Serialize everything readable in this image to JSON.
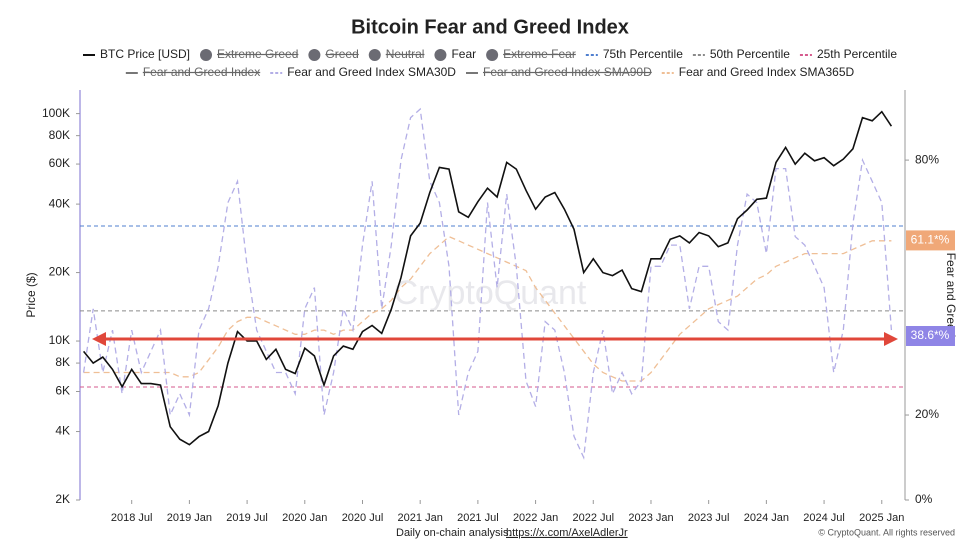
{
  "chart_data": {
    "type": "line",
    "title": "Bitcoin Fear and Greed Index",
    "y_label": "Price ($)",
    "y2_label": "Fear and Greed",
    "watermark": "CryptoQuant",
    "footer": "Daily on-chain analysis:",
    "footer_link": "https://x.com/AxelAdlerJr",
    "copyright": "© CryptoQuant. All rights reserved",
    "log_y": true,
    "xlim": [
      "2018-01",
      "2025-03"
    ],
    "xticks": [
      {
        "value": "2018-07",
        "label": "2018 Jul"
      },
      {
        "value": "2019-01",
        "label": "2019 Jan"
      },
      {
        "value": "2019-07",
        "label": "2019 Jul"
      },
      {
        "value": "2020-01",
        "label": "2020 Jan"
      },
      {
        "value": "2020-07",
        "label": "2020 Jul"
      },
      {
        "value": "2021-01",
        "label": "2021 Jan"
      },
      {
        "value": "2021-07",
        "label": "2021 Jul"
      },
      {
        "value": "2022-01",
        "label": "2022 Jan"
      },
      {
        "value": "2022-07",
        "label": "2022 Jul"
      },
      {
        "value": "2023-01",
        "label": "2023 Jan"
      },
      {
        "value": "2023-07",
        "label": "2023 Jul"
      },
      {
        "value": "2024-01",
        "label": "2024 Jan"
      },
      {
        "value": "2024-07",
        "label": "2024 Jul"
      },
      {
        "value": "2025-01",
        "label": "2025 Jan"
      }
    ],
    "ylim": [
      2000,
      127000
    ],
    "yticks": [
      {
        "value": 2000,
        "label": "2K"
      },
      {
        "value": 4000,
        "label": "4K"
      },
      {
        "value": 6000,
        "label": "6K"
      },
      {
        "value": 8000,
        "label": "8K"
      },
      {
        "value": 10000,
        "label": "10K"
      },
      {
        "value": 20000,
        "label": "20K"
      },
      {
        "value": 40000,
        "label": "40K"
      },
      {
        "value": 60000,
        "label": "60K"
      },
      {
        "value": 80000,
        "label": "80K"
      },
      {
        "value": 100000,
        "label": "100K"
      }
    ],
    "y2lim": [
      0,
      96.5
    ],
    "y2ticks": [
      {
        "value": 0,
        "label": "0%"
      },
      {
        "value": 20,
        "label": "20%"
      },
      {
        "value": 80,
        "label": "80%"
      }
    ],
    "x": [
      "2018-02",
      "2018-03",
      "2018-04",
      "2018-05",
      "2018-06",
      "2018-07",
      "2018-08",
      "2018-09",
      "2018-10",
      "2018-11",
      "2018-12",
      "2019-01",
      "2019-02",
      "2019-03",
      "2019-04",
      "2019-05",
      "2019-06",
      "2019-07",
      "2019-08",
      "2019-09",
      "2019-10",
      "2019-11",
      "2019-12",
      "2020-01",
      "2020-02",
      "2020-03",
      "2020-04",
      "2020-05",
      "2020-06",
      "2020-07",
      "2020-08",
      "2020-09",
      "2020-10",
      "2020-11",
      "2020-12",
      "2021-01",
      "2021-02",
      "2021-03",
      "2021-04",
      "2021-05",
      "2021-06",
      "2021-07",
      "2021-08",
      "2021-09",
      "2021-10",
      "2021-11",
      "2021-12",
      "2022-01",
      "2022-02",
      "2022-03",
      "2022-04",
      "2022-05",
      "2022-06",
      "2022-07",
      "2022-08",
      "2022-09",
      "2022-10",
      "2022-11",
      "2022-12",
      "2023-01",
      "2023-02",
      "2023-03",
      "2023-04",
      "2023-05",
      "2023-06",
      "2023-07",
      "2023-08",
      "2023-09",
      "2023-10",
      "2023-11",
      "2023-12",
      "2024-01",
      "2024-02",
      "2024-03",
      "2024-04",
      "2024-05",
      "2024-06",
      "2024-07",
      "2024-08",
      "2024-09",
      "2024-10",
      "2024-11",
      "2024-12",
      "2025-01",
      "2025-02"
    ],
    "series": [
      {
        "name": "BTC Price [USD]",
        "color": "#111111",
        "dash": false,
        "values": [
          9000,
          8000,
          8500,
          7500,
          6300,
          7500,
          6500,
          6500,
          6400,
          4200,
          3700,
          3500,
          3800,
          4000,
          5200,
          8000,
          11000,
          10000,
          10000,
          8300,
          9200,
          7500,
          7200,
          9300,
          8600,
          6400,
          8600,
          9500,
          9200,
          11000,
          11700,
          10800,
          13800,
          19000,
          29000,
          33000,
          45000,
          58000,
          57000,
          37000,
          35000,
          41000,
          47000,
          43000,
          61000,
          57000,
          46000,
          38000,
          43000,
          45000,
          38000,
          31000,
          20000,
          23000,
          20000,
          19400,
          20500,
          17000,
          16500,
          23000,
          23000,
          28000,
          29000,
          27000,
          30000,
          29000,
          26000,
          27000,
          34500,
          37700,
          42000,
          42500,
          61000,
          71000,
          60000,
          67000,
          62000,
          64000,
          59000,
          63000,
          70000,
          96000,
          93000,
          102000,
          88000
        ]
      },
      {
        "name": "Fear and Greed Index SMA30D",
        "color": "#b3aee6",
        "dash": true,
        "axis": "y2",
        "values": [
          30,
          45,
          30,
          40,
          25,
          40,
          30,
          35,
          40,
          20,
          25,
          20,
          40,
          45,
          55,
          70,
          75,
          55,
          40,
          35,
          30,
          30,
          25,
          45,
          50,
          20,
          30,
          45,
          40,
          60,
          75,
          45,
          60,
          80,
          90,
          92,
          75,
          70,
          55,
          20,
          30,
          35,
          70,
          50,
          72,
          55,
          28,
          22,
          42,
          40,
          30,
          15,
          10,
          30,
          40,
          25,
          30,
          25,
          28,
          55,
          55,
          60,
          60,
          45,
          55,
          55,
          42,
          40,
          60,
          72,
          70,
          58,
          78,
          78,
          62,
          60,
          55,
          50,
          30,
          40,
          65,
          80,
          75,
          70,
          40
        ]
      },
      {
        "name": "Fear and Greed Index SMA365D",
        "color": "#efbf96",
        "dash": true,
        "axis": "y2",
        "values": [
          30,
          30,
          30,
          30,
          30,
          30,
          30,
          30,
          30,
          30,
          29,
          29,
          30,
          33,
          36,
          40,
          42,
          43,
          43,
          42,
          41,
          40,
          39,
          39,
          40,
          40,
          39,
          40,
          40,
          42,
          44,
          45,
          47,
          50,
          52,
          55,
          58,
          60,
          62,
          61,
          60,
          59,
          58,
          57,
          56,
          55,
          54,
          50,
          47,
          44,
          41,
          38,
          35,
          32,
          30,
          29,
          28,
          28,
          28,
          30,
          33,
          36,
          39,
          41,
          43,
          45,
          46,
          47,
          48,
          50,
          52,
          53,
          55,
          56,
          57,
          58,
          58,
          58,
          58,
          58,
          59,
          60,
          61,
          61,
          61
        ]
      }
    ],
    "percentiles": [
      {
        "name": "75th Percentile",
        "color": "#4f7fcf",
        "value": 64.5
      },
      {
        "name": "50th Percentile",
        "color": "#8a8a8a",
        "value": 44.5
      },
      {
        "name": "25th Percentile",
        "color": "#d65a8e",
        "value": 26.6
      }
    ],
    "legend": [
      {
        "name": "BTC Price [USD]",
        "marker": "line",
        "color": "#111111",
        "hidden": false
      },
      {
        "name": "Extreme Greed",
        "marker": "dot",
        "color": "#6b6b73",
        "hidden": true
      },
      {
        "name": "Greed",
        "marker": "dot",
        "color": "#6b6b73",
        "hidden": true
      },
      {
        "name": "Neutral",
        "marker": "dot",
        "color": "#6b6b73",
        "hidden": true
      },
      {
        "name": "Fear",
        "marker": "dot",
        "color": "#6b6b73",
        "hidden": false
      },
      {
        "name": "Extreme Fear",
        "marker": "dot",
        "color": "#6b6b73",
        "hidden": true
      },
      {
        "name": "75th Percentile",
        "marker": "dash",
        "color": "#4f7fcf",
        "hidden": false
      },
      {
        "name": "50th Percentile",
        "marker": "dash",
        "color": "#8a8a8a",
        "hidden": false
      },
      {
        "name": "25th Percentile",
        "marker": "dash",
        "color": "#d65a8e",
        "hidden": false
      },
      {
        "name": "Fear and Greed Index",
        "marker": "line",
        "color": "#777777",
        "hidden": true
      },
      {
        "name": "Fear and Greed Index SMA30D",
        "marker": "dash",
        "color": "#b3aee6",
        "hidden": false
      },
      {
        "name": "Fear and Greed Index SMA90D",
        "marker": "line",
        "color": "#777777",
        "hidden": true
      },
      {
        "name": "Fear and Greed Index SMA365D",
        "marker": "dash",
        "color": "#efbf96",
        "hidden": false
      }
    ],
    "annotations": [
      {
        "value": 61.1,
        "label": "61.1*%",
        "color": "#f0a878"
      },
      {
        "value": 38.6,
        "label": "38.6*%",
        "color": "#8f85e6"
      }
    ]
  }
}
